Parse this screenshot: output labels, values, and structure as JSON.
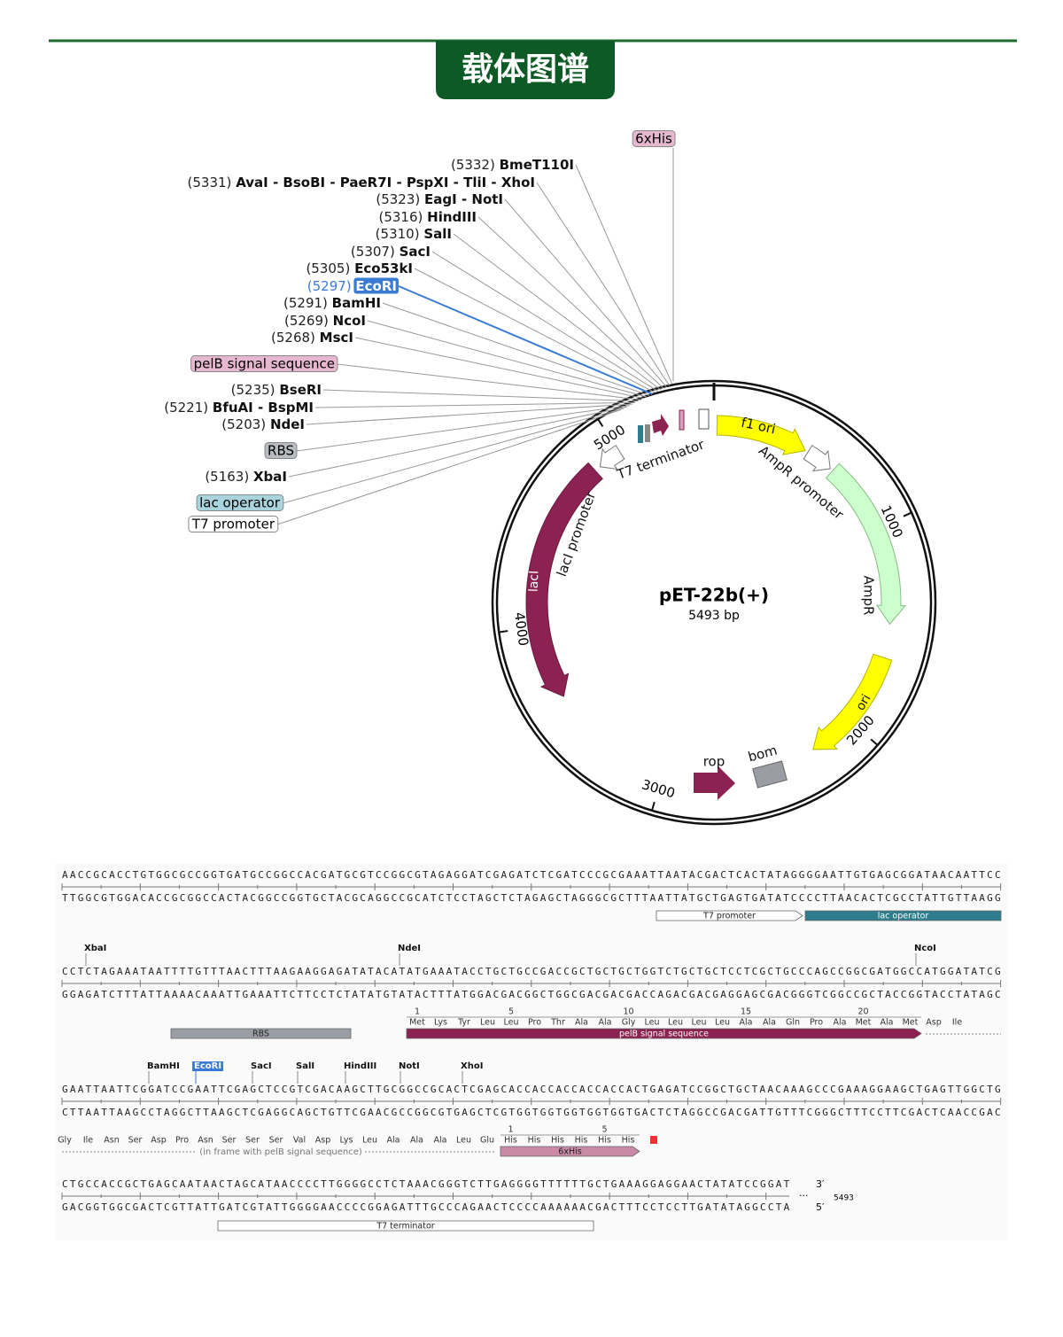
{
  "header": {
    "title": "载体图谱"
  },
  "map": {
    "name": "pET-22b(+)",
    "size_label": "5493 bp",
    "length": 5493,
    "ticks": [
      1000,
      2000,
      3000,
      4000,
      5000
    ],
    "features": [
      "f1 ori",
      "AmpR promoter",
      "AmpR",
      "ori",
      "bom",
      "rop",
      "lacI",
      "lacI promoter",
      "T7 terminator"
    ],
    "labels": [
      {
        "feature": "6xHis"
      },
      {
        "position": "(5332)",
        "name": "BmeT110I"
      },
      {
        "position": "(5331)",
        "name": "AvaI - BsoBI - PaeR7I - PspXI - TliI - XhoI"
      },
      {
        "position": "(5323)",
        "name": "EagI - NotI"
      },
      {
        "position": "(5316)",
        "name": "HindIII"
      },
      {
        "position": "(5310)",
        "name": "SalI"
      },
      {
        "position": "(5307)",
        "name": "SacI"
      },
      {
        "position": "(5305)",
        "name": "Eco53kI"
      },
      {
        "position": "(5297)",
        "name": "EcoRI"
      },
      {
        "position": "(5291)",
        "name": "BamHI"
      },
      {
        "position": "(5269)",
        "name": "NcoI"
      },
      {
        "position": "(5268)",
        "name": "MscI"
      },
      {
        "feature": "pelB signal sequence"
      },
      {
        "position": "(5235)",
        "name": "BseRI"
      },
      {
        "position": "(5221)",
        "name": "BfuAI - BspMI"
      },
      {
        "position": "(5203)",
        "name": "NdeI"
      },
      {
        "feature": "RBS"
      },
      {
        "position": "(5163)",
        "name": "XbaI"
      },
      {
        "feature": "lac operator"
      },
      {
        "feature": "T7 promoter"
      }
    ]
  },
  "sequence": {
    "rows": [
      {
        "top": "AACCGCACCTGTGGCGCCGGTGATGCCGGCCACGATGCGTCCGGCGTAGAGGATCGAGATCTCGATCCCGCGAAATTAATACGACTCACTATAGGGGAATTGTGAGCGGATAACAATTCC",
        "bottom": "TTGGCGTGGACACCGCGGCCACTACGGCCGGTGCTACGCAGGCCGCATCTCCTAGCTCTAGAGCTAGGGCGCTTTAATTATGCTGAGTGATATCCCCTTAACACTCGCCTATTGTTAAGG",
        "features": [
          "T7 promoter",
          "lac operator"
        ]
      },
      {
        "sites": [
          "XbaI",
          "NdeI",
          "NcoI"
        ],
        "top": "CCTCTAGAAATAATTTTGTTTAACTTTAAGAAGGAGATATACATATGAAATACCTGCTGCCGACCGCTGCTGCTGGTCTGCTGCTCCTCGCTGCCCAGCCGGCGATGGCCATGGATATCG",
        "bottom": "GGAGATCTTTATTAAAACAAATTGAAATTCTTCCTCTATATGTATACTTTATGGACGACGGCTGGCGACGACGACCAGACGACGAGGAGCGACGGGTCGGCCGCTACCGGTACCTATAGC",
        "numbers": [
          1,
          5,
          10,
          15,
          20
        ],
        "aa": [
          "Met",
          "Lys",
          "Tyr",
          "Leu",
          "Leu",
          "Pro",
          "Thr",
          "Ala",
          "Ala",
          "Gly",
          "Leu",
          "Leu",
          "Leu",
          "Leu",
          "Ala",
          "Ala",
          "Gln",
          "Pro",
          "Ala",
          "Met",
          "Ala",
          "Met",
          "Asp",
          "Ile"
        ],
        "features": [
          "RBS",
          "pelB signal sequence"
        ]
      },
      {
        "sites": [
          "BamHI",
          "EcoRI",
          "SacI",
          "SalI",
          "HindIII",
          "NotI",
          "XhoI"
        ],
        "top": "GAATTAATTCGGATCCGAATTCGAGCTCCGTCGACAAGCTTGCGGCCGCACTCGAGCACCACCACCACCACCACTGAGATCCGGCTGCTAACAAAGCCCGAAAGGAAGCTGAGTTGGCTG",
        "bottom": "CTTAATTAAGCCTAGGCTTAAGCTCGAGGCAGCTGTTCGAACGCCGGCGTGAGCTCGTGGTGGTGGTGGTGGTGACTCTAGGCCGACGATTGTTTCGGGCTTTCCTTCGACTCAACCGAC",
        "numbers": [
          1,
          5
        ],
        "aa": [
          "Gly",
          "Ile",
          "Asn",
          "Ser",
          "Asp",
          "Pro",
          "Asn",
          "Ser",
          "Ser",
          "Ser",
          "Val",
          "Asp",
          "Lys",
          "Leu",
          "Ala",
          "Ala",
          "Ala",
          "Leu",
          "Glu",
          "His",
          "His",
          "His",
          "His",
          "His",
          "His"
        ],
        "note": "(in frame with pelB signal sequence)",
        "features": [
          "6xHis"
        ]
      },
      {
        "top": "CTGCCACCGCTGAGCAATAACTAGCATAACCCCTTGGGGCCTCTAAACGGGTCTTGAGGGGTTTTTTGCTGAAAGGAGGAACTATATCCGGAT",
        "bottom": "GACGGTGGCGACTCGTTATTGATCGTATTGGGGAACCCCGGAGATTTGCCCAGAACTCCCCAAAAAACGACTTTCCTCCTTGATATAGGCCTA",
        "end_top": "3′",
        "end_bottom": "5′",
        "ellipsis": "···",
        "features": [
          "T7 terminator"
        ]
      }
    ]
  }
}
